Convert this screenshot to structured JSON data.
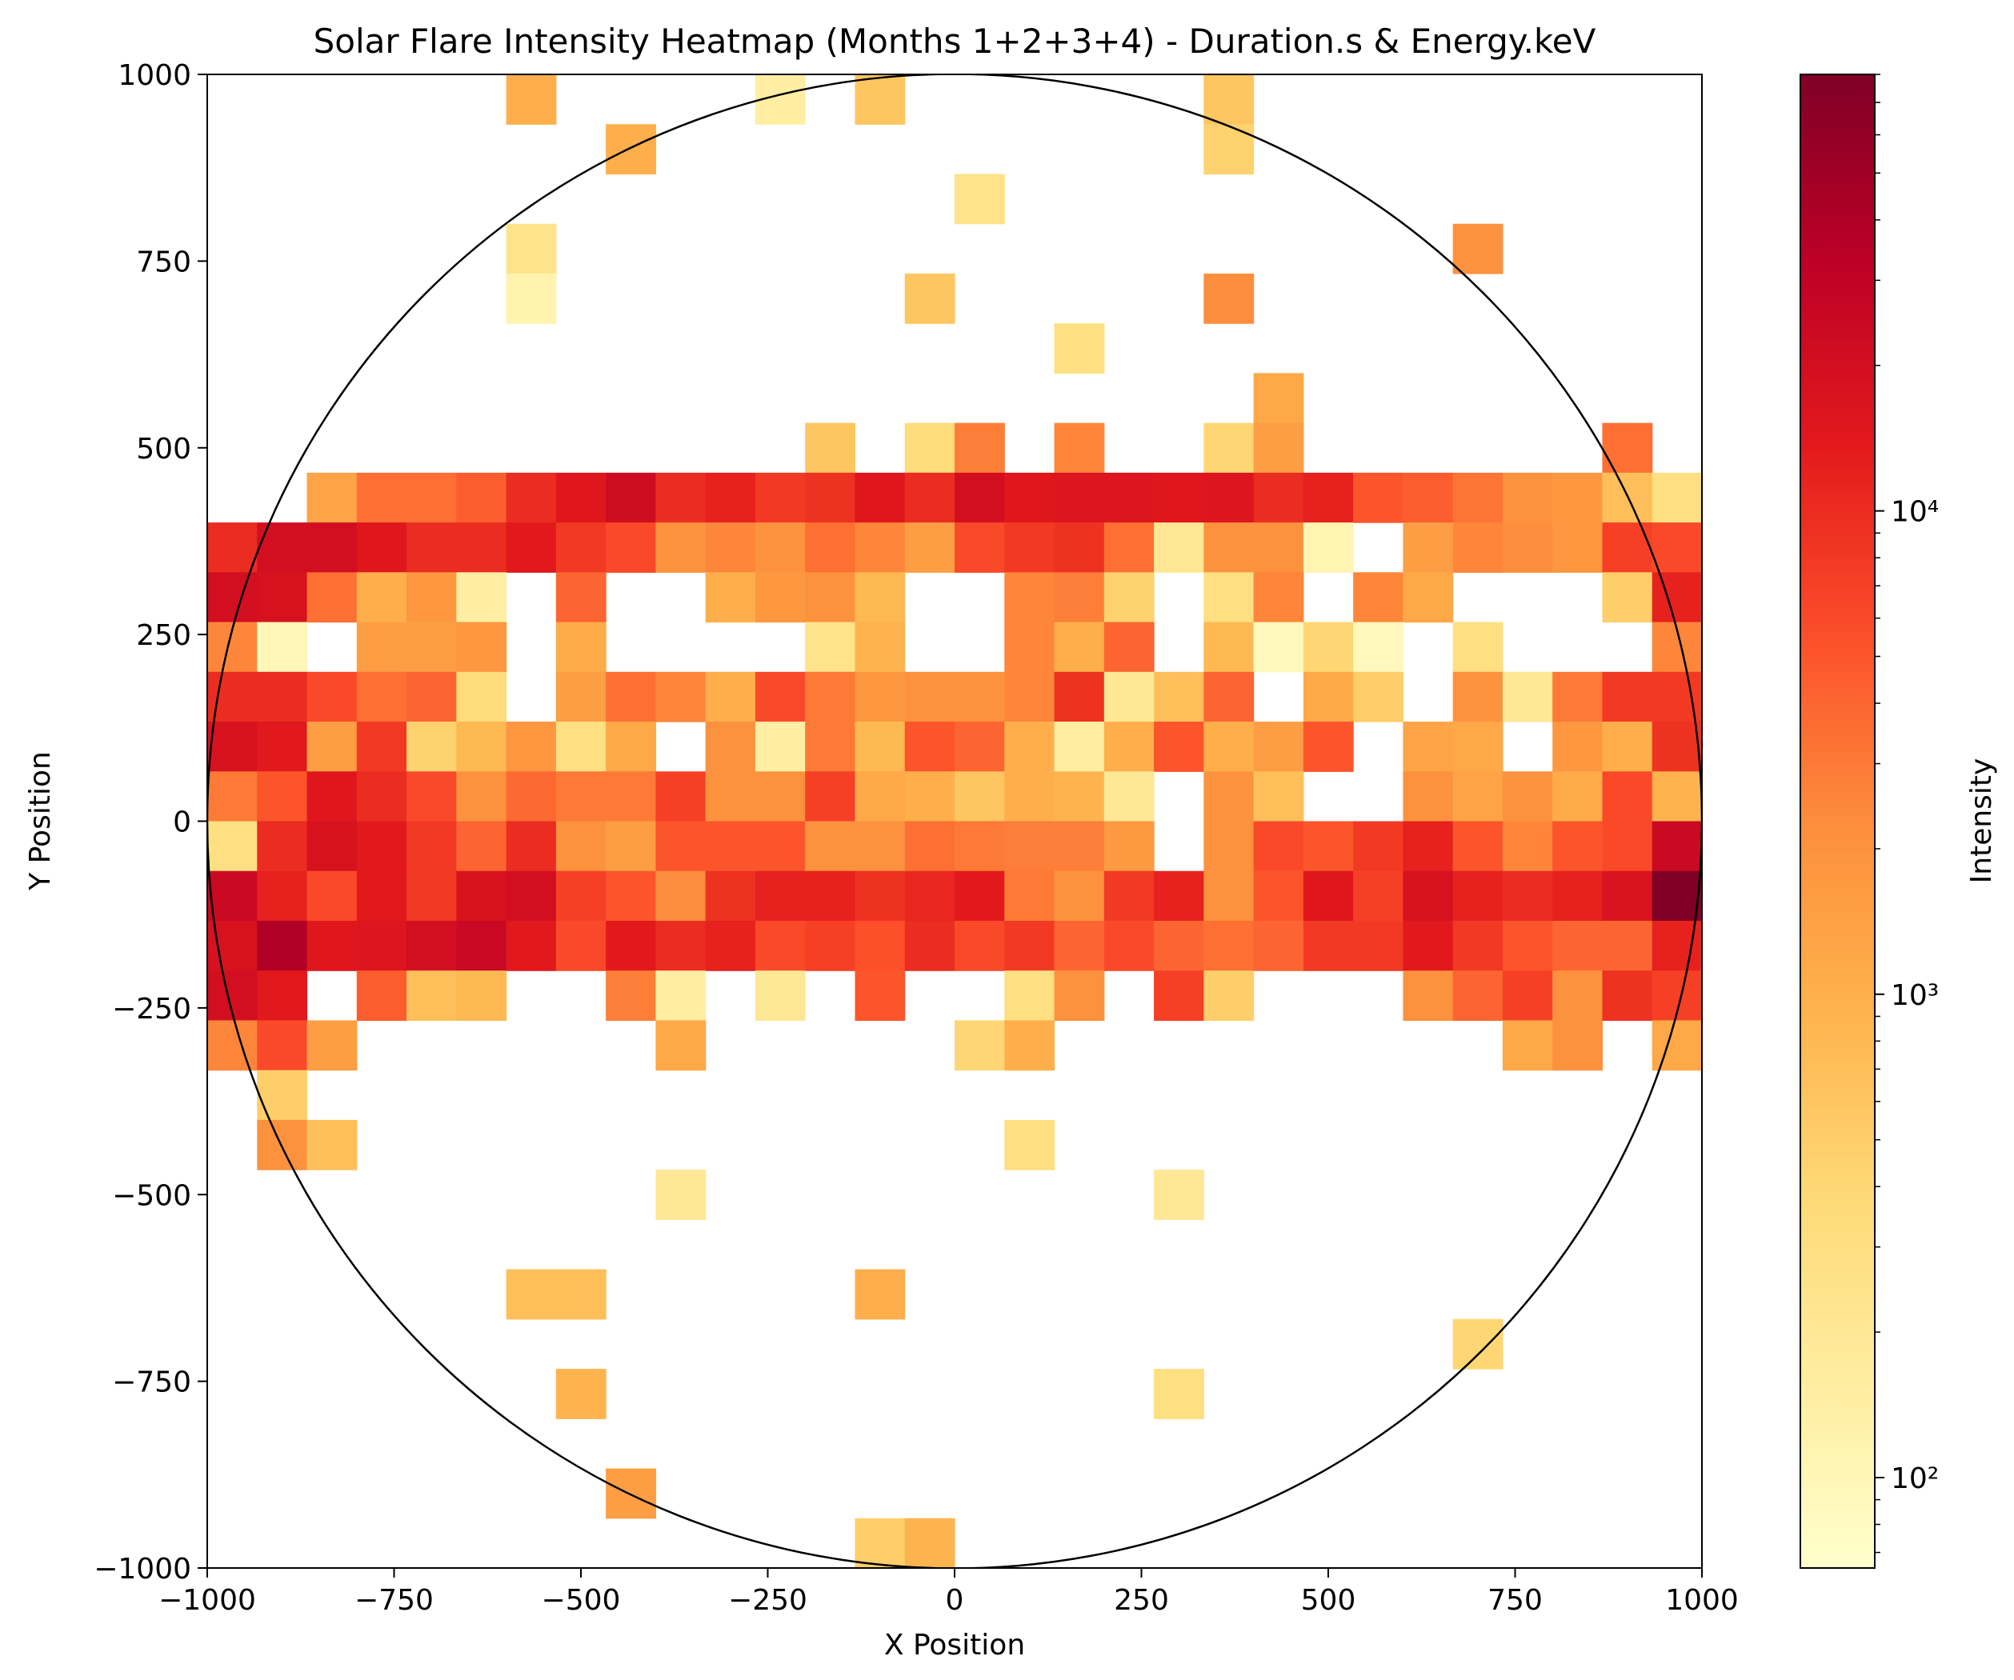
{
  "chart_data": {
    "type": "heatmap",
    "title": "Solar Flare Intensity Heatmap (Months 1+2+3+4) - Duration.s & Energy.keV",
    "xlabel": "X Position",
    "ylabel": "Y Position",
    "xlim": [
      -1000,
      1000
    ],
    "ylim": [
      -1000,
      1000
    ],
    "xticks": [
      -1000,
      -750,
      -500,
      -250,
      0,
      250,
      500,
      750,
      1000
    ],
    "yticks": [
      -1000,
      -750,
      -500,
      -250,
      0,
      250,
      500,
      750,
      1000
    ],
    "xtick_labels": [
      "−1000",
      "−750",
      "−500",
      "−250",
      "0",
      "250",
      "500",
      "750",
      "1000"
    ],
    "ytick_labels": [
      "−1000",
      "−750",
      "−500",
      "−250",
      "0",
      "250",
      "500",
      "750",
      "1000"
    ],
    "bins": 30,
    "colorbar": {
      "label": "Intensity",
      "scale": "log",
      "range": [
        65,
        80000
      ],
      "ticks": [
        100,
        1000,
        10000
      ],
      "tick_labels": [
        "10²",
        "10³",
        "10⁴"
      ],
      "colormap": "YlOrRd"
    },
    "overlay": {
      "shape": "circle",
      "center": [
        0,
        0
      ],
      "radius": 1000,
      "color": "#000000"
    },
    "grid": false,
    "row_order": "top-to-bottom",
    "grid_values": [
      [
        0,
        0,
        0,
        0,
        0,
        0,
        1000,
        0,
        0,
        0,
        0,
        150,
        0,
        600,
        0,
        0,
        0,
        0,
        0,
        0,
        600,
        0,
        0,
        0,
        0,
        0,
        0,
        0,
        0,
        0
      ],
      [
        0,
        0,
        0,
        0,
        0,
        0,
        0,
        0,
        1000,
        0,
        0,
        0,
        0,
        0,
        0,
        0,
        0,
        0,
        0,
        0,
        450,
        0,
        0,
        0,
        0,
        0,
        0,
        0,
        0,
        0
      ],
      [
        0,
        0,
        0,
        0,
        0,
        0,
        0,
        0,
        0,
        0,
        0,
        0,
        0,
        0,
        0,
        250,
        0,
        0,
        0,
        0,
        0,
        0,
        0,
        0,
        0,
        0,
        0,
        0,
        0,
        0
      ],
      [
        0,
        0,
        0,
        0,
        0,
        0,
        250,
        0,
        0,
        0,
        0,
        0,
        0,
        0,
        0,
        0,
        0,
        0,
        0,
        0,
        0,
        0,
        0,
        0,
        0,
        2000,
        0,
        0,
        0,
        0
      ],
      [
        0,
        0,
        0,
        0,
        0,
        0,
        120,
        0,
        0,
        0,
        0,
        0,
        0,
        0,
        600,
        0,
        0,
        0,
        0,
        0,
        2200,
        0,
        0,
        0,
        0,
        0,
        0,
        0,
        0,
        0
      ],
      [
        0,
        0,
        0,
        0,
        0,
        0,
        0,
        0,
        0,
        0,
        0,
        0,
        0,
        0,
        0,
        0,
        0,
        300,
        0,
        0,
        0,
        0,
        0,
        0,
        0,
        0,
        0,
        0,
        0,
        0
      ],
      [
        0,
        0,
        0,
        0,
        0,
        0,
        0,
        0,
        0,
        0,
        0,
        0,
        0,
        0,
        0,
        0,
        0,
        0,
        0,
        0,
        0,
        1200,
        0,
        0,
        0,
        0,
        0,
        0,
        0,
        0
      ],
      [
        0,
        0,
        0,
        0,
        0,
        0,
        0,
        0,
        0,
        0,
        0,
        0,
        600,
        0,
        350,
        2800,
        0,
        2500,
        0,
        0,
        400,
        1500,
        0,
        0,
        0,
        0,
        0,
        0,
        3500,
        0
      ],
      [
        0,
        0,
        1300,
        3500,
        3500,
        4500,
        10000,
        15000,
        22000,
        10000,
        12000,
        8000,
        9000,
        15000,
        10000,
        20000,
        15000,
        16000,
        16000,
        15000,
        16000,
        10000,
        12000,
        5000,
        4500,
        3200,
        2000,
        1800,
        700,
        300
      ],
      [
        10000,
        20000,
        20000,
        15000,
        10000,
        10000,
        14000,
        8000,
        6000,
        2000,
        2500,
        2000,
        3500,
        2500,
        1500,
        6000,
        8000,
        9000,
        3500,
        200,
        2000,
        2000,
        110,
        0,
        1500,
        2500,
        2200,
        1800,
        7000,
        6000
      ],
      [
        20000,
        18000,
        3500,
        1000,
        1800,
        150,
        0,
        4000,
        0,
        0,
        1000,
        1800,
        2000,
        800,
        0,
        0,
        2500,
        2800,
        450,
        0,
        300,
        2500,
        0,
        2500,
        1200,
        0,
        0,
        0,
        500,
        12000
      ],
      [
        2500,
        100,
        0,
        1500,
        1500,
        1800,
        0,
        1100,
        0,
        0,
        0,
        0,
        250,
        900,
        0,
        0,
        2500,
        1000,
        4000,
        0,
        800,
        90,
        400,
        90,
        0,
        300,
        0,
        0,
        0,
        2500
      ],
      [
        10000,
        10000,
        6000,
        3500,
        4000,
        350,
        0,
        1500,
        3500,
        2500,
        1000,
        6000,
        3000,
        1800,
        2000,
        2000,
        2500,
        9000,
        200,
        700,
        4000,
        0,
        1200,
        500,
        0,
        2000,
        200,
        3000,
        8000,
        8000
      ],
      [
        18000,
        14000,
        1500,
        8000,
        450,
        800,
        1800,
        300,
        1200,
        0,
        2000,
        150,
        3000,
        800,
        5000,
        4000,
        1000,
        150,
        1000,
        5000,
        1000,
        1500,
        5000,
        0,
        1300,
        1200,
        0,
        1800,
        1000,
        9000
      ],
      [
        3000,
        5000,
        15000,
        10000,
        6000,
        2000,
        3800,
        3000,
        3000,
        7000,
        2000,
        2000,
        7000,
        1200,
        1000,
        600,
        1000,
        900,
        200,
        0,
        2000,
        700,
        0,
        0,
        2000,
        1300,
        2000,
        1100,
        6000,
        900
      ],
      [
        300,
        10000,
        18000,
        14000,
        8000,
        4000,
        10000,
        2000,
        1500,
        5000,
        5000,
        5000,
        2000,
        2000,
        3500,
        3000,
        2800,
        2800,
        1700,
        0,
        2000,
        6000,
        5000,
        8000,
        12000,
        5000,
        2500,
        5000,
        6000,
        24000
      ],
      [
        24000,
        12000,
        6000,
        14000,
        8000,
        18000,
        20000,
        7000,
        5000,
        2200,
        9000,
        12000,
        12000,
        9000,
        11000,
        14000,
        3000,
        2000,
        8000,
        12000,
        2000,
        5000,
        15000,
        7000,
        18000,
        12000,
        10000,
        12000,
        17000,
        80000
      ],
      [
        18000,
        40000,
        15000,
        16000,
        20000,
        25000,
        14000,
        6000,
        14000,
        10000,
        12000,
        6000,
        7000,
        5500,
        10000,
        6000,
        8000,
        4000,
        6000,
        4000,
        3500,
        4000,
        8000,
        8000,
        14000,
        8000,
        5000,
        4000,
        4000,
        12000
      ],
      [
        20000,
        14000,
        0,
        4500,
        700,
        800,
        0,
        0,
        2800,
        150,
        0,
        200,
        0,
        5000,
        0,
        0,
        300,
        2000,
        0,
        7000,
        500,
        0,
        0,
        0,
        2000,
        4000,
        7000,
        2000,
        9000,
        7000
      ],
      [
        2500,
        6000,
        1500,
        0,
        0,
        0,
        0,
        0,
        0,
        1200,
        0,
        0,
        0,
        0,
        0,
        400,
        1000,
        0,
        0,
        0,
        0,
        0,
        0,
        0,
        0,
        0,
        1200,
        2000,
        0,
        1200
      ],
      [
        0,
        500,
        0,
        0,
        0,
        0,
        0,
        0,
        0,
        0,
        0,
        0,
        0,
        0,
        0,
        0,
        0,
        0,
        0,
        0,
        0,
        0,
        0,
        0,
        0,
        0,
        0,
        0,
        0,
        0
      ],
      [
        0,
        2000,
        700,
        0,
        0,
        0,
        0,
        0,
        0,
        0,
        0,
        0,
        0,
        0,
        0,
        0,
        300,
        0,
        0,
        0,
        0,
        0,
        0,
        0,
        0,
        0,
        0,
        0,
        0,
        0
      ],
      [
        0,
        0,
        0,
        0,
        0,
        0,
        0,
        0,
        0,
        200,
        0,
        0,
        0,
        0,
        0,
        0,
        0,
        0,
        0,
        200,
        0,
        0,
        0,
        0,
        0,
        0,
        0,
        0,
        0,
        0
      ],
      [
        0,
        0,
        0,
        0,
        0,
        0,
        0,
        0,
        0,
        0,
        0,
        0,
        0,
        0,
        0,
        0,
        0,
        0,
        0,
        0,
        0,
        0,
        0,
        0,
        0,
        0,
        0,
        0,
        0,
        0
      ],
      [
        0,
        0,
        0,
        0,
        0,
        0,
        700,
        700,
        0,
        0,
        0,
        0,
        0,
        1000,
        0,
        0,
        0,
        0,
        0,
        0,
        0,
        0,
        0,
        0,
        0,
        0,
        0,
        0,
        0,
        0
      ],
      [
        0,
        0,
        0,
        0,
        0,
        0,
        0,
        0,
        0,
        0,
        0,
        0,
        0,
        0,
        0,
        0,
        0,
        0,
        0,
        0,
        0,
        0,
        0,
        0,
        0,
        400,
        0,
        0,
        0,
        0
      ],
      [
        0,
        0,
        0,
        0,
        0,
        0,
        0,
        900,
        0,
        0,
        0,
        0,
        0,
        0,
        0,
        0,
        0,
        0,
        0,
        300,
        0,
        0,
        0,
        0,
        0,
        0,
        0,
        0,
        0,
        0
      ],
      [
        0,
        0,
        0,
        0,
        0,
        0,
        0,
        0,
        0,
        0,
        0,
        0,
        0,
        0,
        0,
        0,
        0,
        0,
        0,
        0,
        0,
        0,
        0,
        0,
        0,
        0,
        0,
        0,
        0,
        0
      ],
      [
        0,
        0,
        0,
        0,
        0,
        0,
        0,
        0,
        1500,
        0,
        0,
        0,
        0,
        0,
        0,
        0,
        0,
        0,
        0,
        0,
        0,
        0,
        0,
        0,
        0,
        0,
        0,
        0,
        0,
        0
      ],
      [
        0,
        0,
        0,
        0,
        0,
        0,
        0,
        0,
        0,
        0,
        0,
        0,
        0,
        500,
        900,
        0,
        0,
        0,
        0,
        0,
        0,
        0,
        0,
        0,
        0,
        0,
        0,
        0,
        0,
        0
      ]
    ]
  }
}
